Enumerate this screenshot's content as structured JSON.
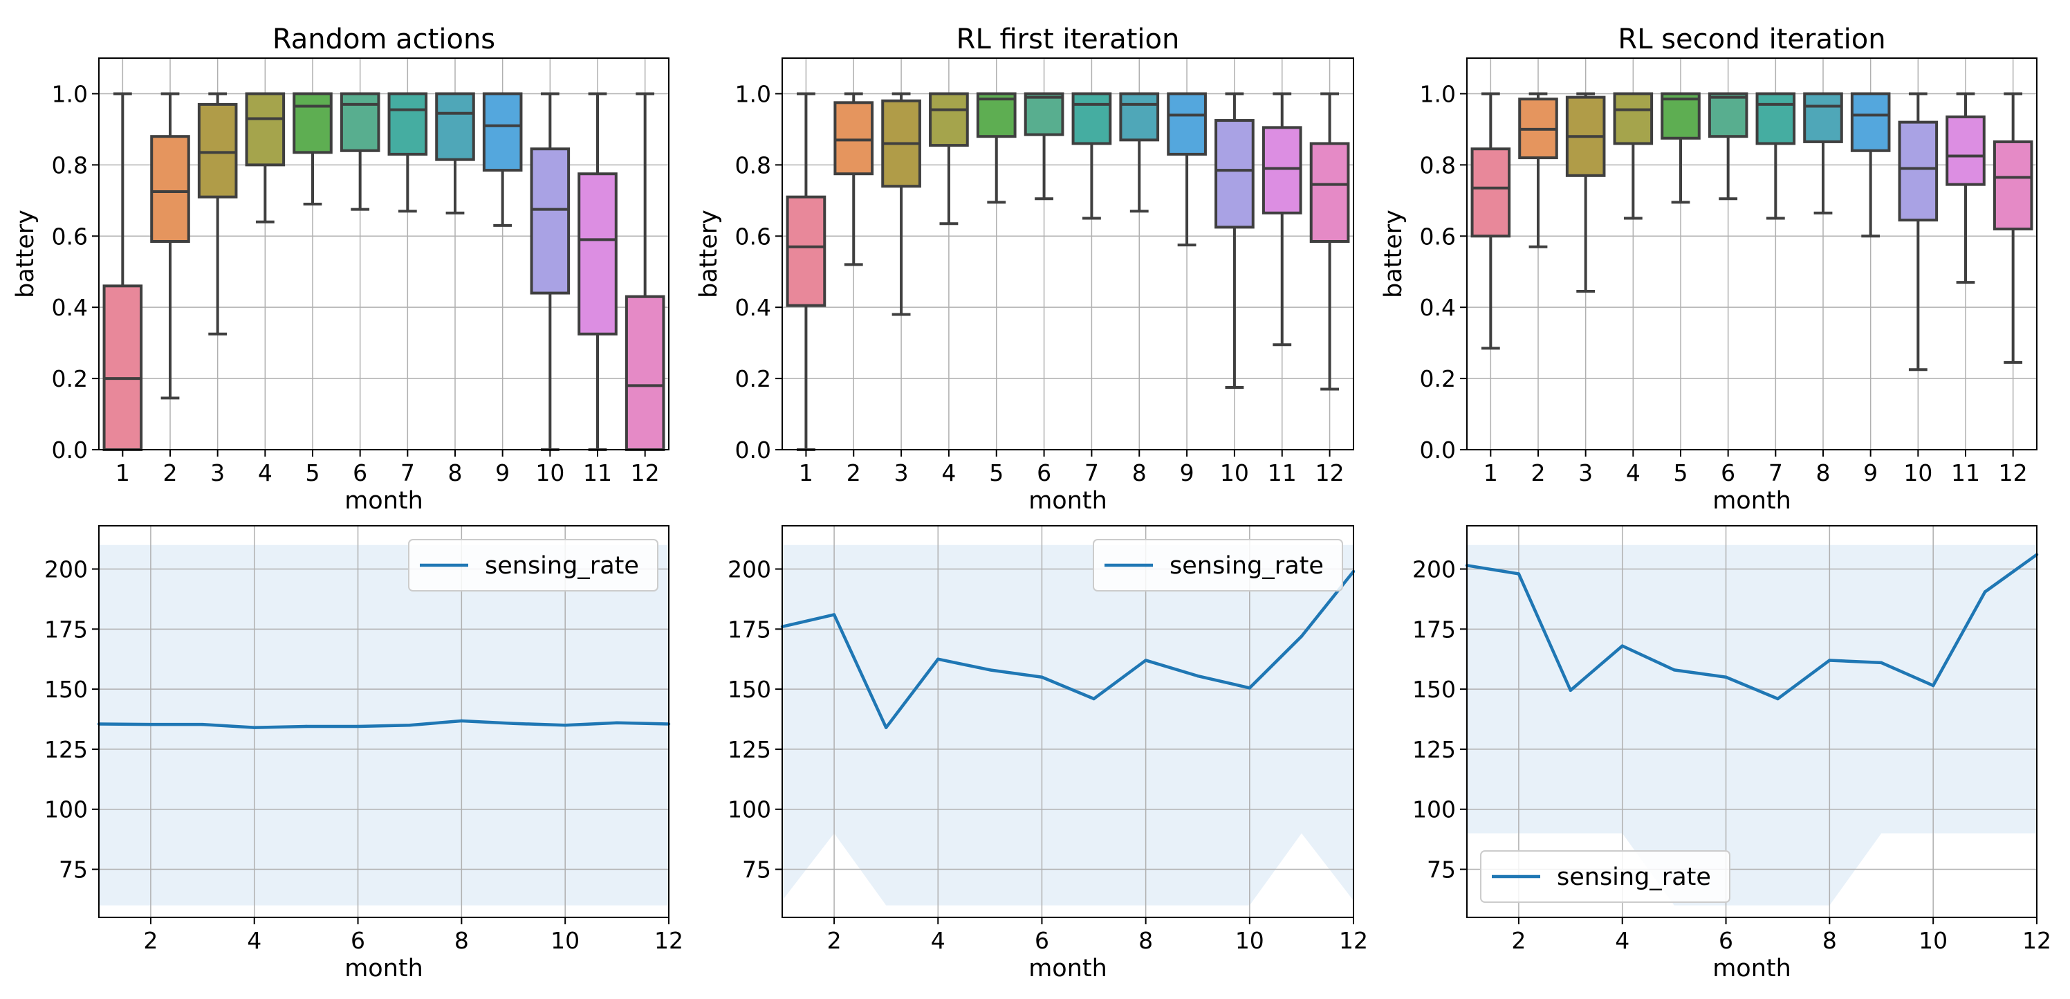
{
  "chart_data": [
    {
      "type": "box",
      "title": "Random actions",
      "xlabel": "month",
      "ylabel": "battery",
      "categories": [
        "1",
        "2",
        "3",
        "4",
        "5",
        "6",
        "7",
        "8",
        "9",
        "10",
        "11",
        "12"
      ],
      "ylim": [
        0,
        1.1
      ],
      "yticks": [
        "0.0",
        "0.2",
        "0.4",
        "0.6",
        "0.8",
        "1.0"
      ],
      "grid": true,
      "boxes": [
        {
          "min": 0.0,
          "q1": 0.0,
          "median": 0.2,
          "q3": 0.46,
          "max": 1.0
        },
        {
          "min": 0.145,
          "q1": 0.585,
          "median": 0.725,
          "q3": 0.88,
          "max": 1.0
        },
        {
          "min": 0.325,
          "q1": 0.71,
          "median": 0.835,
          "q3": 0.97,
          "max": 1.0
        },
        {
          "min": 0.64,
          "q1": 0.8,
          "median": 0.93,
          "q3": 1.0,
          "max": 1.0
        },
        {
          "min": 0.69,
          "q1": 0.835,
          "median": 0.965,
          "q3": 1.0,
          "max": 1.0
        },
        {
          "min": 0.675,
          "q1": 0.84,
          "median": 0.97,
          "q3": 1.0,
          "max": 1.0
        },
        {
          "min": 0.67,
          "q1": 0.83,
          "median": 0.955,
          "q3": 1.0,
          "max": 1.0
        },
        {
          "min": 0.665,
          "q1": 0.815,
          "median": 0.945,
          "q3": 1.0,
          "max": 1.0
        },
        {
          "min": 0.63,
          "q1": 0.785,
          "median": 0.91,
          "q3": 1.0,
          "max": 1.0
        },
        {
          "min": 0.0,
          "q1": 0.44,
          "median": 0.675,
          "q3": 0.845,
          "max": 1.0
        },
        {
          "min": 0.0,
          "q1": 0.325,
          "median": 0.59,
          "q3": 0.775,
          "max": 1.0
        },
        {
          "min": 0.0,
          "q1": 0.0,
          "median": 0.18,
          "q3": 0.43,
          "max": 1.0
        }
      ]
    },
    {
      "type": "box",
      "title": "RL first iteration",
      "xlabel": "month",
      "ylabel": "battery",
      "categories": [
        "1",
        "2",
        "3",
        "4",
        "5",
        "6",
        "7",
        "8",
        "9",
        "10",
        "11",
        "12"
      ],
      "ylim": [
        0,
        1.1
      ],
      "yticks": [
        "0.0",
        "0.2",
        "0.4",
        "0.6",
        "0.8",
        "1.0"
      ],
      "grid": true,
      "boxes": [
        {
          "min": 0.0,
          "q1": 0.405,
          "median": 0.57,
          "q3": 0.71,
          "max": 1.0
        },
        {
          "min": 0.52,
          "q1": 0.775,
          "median": 0.87,
          "q3": 0.975,
          "max": 1.0
        },
        {
          "min": 0.38,
          "q1": 0.74,
          "median": 0.86,
          "q3": 0.98,
          "max": 1.0
        },
        {
          "min": 0.635,
          "q1": 0.855,
          "median": 0.955,
          "q3": 1.0,
          "max": 1.0
        },
        {
          "min": 0.695,
          "q1": 0.88,
          "median": 0.985,
          "q3": 1.0,
          "max": 1.0
        },
        {
          "min": 0.705,
          "q1": 0.885,
          "median": 0.99,
          "q3": 1.0,
          "max": 1.0
        },
        {
          "min": 0.65,
          "q1": 0.86,
          "median": 0.97,
          "q3": 1.0,
          "max": 1.0
        },
        {
          "min": 0.67,
          "q1": 0.87,
          "median": 0.97,
          "q3": 1.0,
          "max": 1.0
        },
        {
          "min": 0.575,
          "q1": 0.83,
          "median": 0.94,
          "q3": 1.0,
          "max": 1.0
        },
        {
          "min": 0.175,
          "q1": 0.625,
          "median": 0.785,
          "q3": 0.925,
          "max": 1.0
        },
        {
          "min": 0.295,
          "q1": 0.665,
          "median": 0.79,
          "q3": 0.905,
          "max": 1.0
        },
        {
          "min": 0.17,
          "q1": 0.585,
          "median": 0.745,
          "q3": 0.86,
          "max": 1.0
        }
      ]
    },
    {
      "type": "box",
      "title": "RL second iteration",
      "xlabel": "month",
      "ylabel": "battery",
      "categories": [
        "1",
        "2",
        "3",
        "4",
        "5",
        "6",
        "7",
        "8",
        "9",
        "10",
        "11",
        "12"
      ],
      "ylim": [
        0,
        1.1
      ],
      "yticks": [
        "0.0",
        "0.2",
        "0.4",
        "0.6",
        "0.8",
        "1.0"
      ],
      "grid": true,
      "boxes": [
        {
          "min": 0.285,
          "q1": 0.6,
          "median": 0.735,
          "q3": 0.845,
          "max": 1.0
        },
        {
          "min": 0.57,
          "q1": 0.82,
          "median": 0.9,
          "q3": 0.985,
          "max": 1.0
        },
        {
          "min": 0.445,
          "q1": 0.77,
          "median": 0.88,
          "q3": 0.99,
          "max": 1.0
        },
        {
          "min": 0.65,
          "q1": 0.86,
          "median": 0.955,
          "q3": 1.0,
          "max": 1.0
        },
        {
          "min": 0.695,
          "q1": 0.875,
          "median": 0.985,
          "q3": 1.0,
          "max": 1.0
        },
        {
          "min": 0.705,
          "q1": 0.88,
          "median": 0.99,
          "q3": 1.0,
          "max": 1.0
        },
        {
          "min": 0.65,
          "q1": 0.86,
          "median": 0.97,
          "q3": 1.0,
          "max": 1.0
        },
        {
          "min": 0.665,
          "q1": 0.865,
          "median": 0.965,
          "q3": 1.0,
          "max": 1.0
        },
        {
          "min": 0.6,
          "q1": 0.84,
          "median": 0.94,
          "q3": 1.0,
          "max": 1.0
        },
        {
          "min": 0.225,
          "q1": 0.645,
          "median": 0.79,
          "q3": 0.92,
          "max": 1.0
        },
        {
          "min": 0.47,
          "q1": 0.745,
          "median": 0.825,
          "q3": 0.935,
          "max": 1.0
        },
        {
          "min": 0.245,
          "q1": 0.62,
          "median": 0.765,
          "q3": 0.865,
          "max": 1.0
        }
      ]
    },
    {
      "type": "line",
      "title": "",
      "xlabel": "month",
      "ylabel": "",
      "x": [
        1,
        2,
        3,
        4,
        5,
        6,
        7,
        8,
        9,
        10,
        11,
        12
      ],
      "xlim": [
        1,
        12
      ],
      "ylim": [
        55,
        218
      ],
      "xticks": [
        "2",
        "4",
        "6",
        "8",
        "10",
        "12"
      ],
      "yticks": [
        "75",
        "100",
        "125",
        "150",
        "175",
        "200"
      ],
      "grid": true,
      "legend": "top-right",
      "series": [
        {
          "name": "sensing_rate",
          "values": [
            135.5,
            135.3,
            135.3,
            134,
            134.5,
            134.5,
            135,
            136.8,
            135.7,
            135,
            136,
            135.5
          ]
        }
      ],
      "band": {
        "lower": [
          60,
          60,
          60,
          60,
          60,
          60,
          60,
          60,
          60,
          60,
          60,
          60
        ],
        "upper": [
          210,
          210,
          210,
          210,
          210,
          210,
          210,
          210,
          210,
          210,
          210,
          210
        ]
      }
    },
    {
      "type": "line",
      "title": "",
      "xlabel": "month",
      "ylabel": "",
      "x": [
        1,
        2,
        3,
        4,
        5,
        6,
        7,
        8,
        9,
        10,
        11,
        12
      ],
      "xlim": [
        1,
        12
      ],
      "ylim": [
        55,
        218
      ],
      "xticks": [
        "2",
        "4",
        "6",
        "8",
        "10",
        "12"
      ],
      "yticks": [
        "75",
        "100",
        "125",
        "150",
        "175",
        "200"
      ],
      "grid": true,
      "legend": "top-right",
      "series": [
        {
          "name": "sensing_rate",
          "values": [
            176,
            181,
            134,
            162.5,
            158,
            155,
            146,
            162,
            155.5,
            150.5,
            172,
            199
          ]
        }
      ],
      "band": {
        "lower": [
          62,
          90,
          60,
          60,
          60,
          60,
          60,
          60,
          60,
          60,
          90,
          62
        ],
        "upper": [
          210,
          210,
          210,
          210,
          210,
          210,
          210,
          210,
          210,
          210,
          210,
          210
        ]
      }
    },
    {
      "type": "line",
      "title": "",
      "xlabel": "month",
      "ylabel": "",
      "x": [
        1,
        2,
        3,
        4,
        5,
        6,
        7,
        8,
        9,
        10,
        11,
        12
      ],
      "xlim": [
        1,
        12
      ],
      "ylim": [
        55,
        218
      ],
      "xticks": [
        "2",
        "4",
        "6",
        "8",
        "10",
        "12"
      ],
      "yticks": [
        "75",
        "100",
        "125",
        "150",
        "175",
        "200"
      ],
      "grid": true,
      "legend": "bottom-left",
      "series": [
        {
          "name": "sensing_rate",
          "values": [
            201.5,
            198,
            149.5,
            168,
            158,
            155,
            146,
            162,
            161,
            151.5,
            190.5,
            206
          ]
        }
      ],
      "band": {
        "lower": [
          90,
          90,
          90,
          90,
          60,
          60,
          60,
          60,
          90,
          90,
          90,
          90
        ],
        "upper": [
          210,
          210,
          210,
          210,
          210,
          210,
          210,
          210,
          210,
          210,
          210,
          210
        ]
      }
    }
  ],
  "colors": {
    "box_palette": [
      "#e8889a",
      "#e5955e",
      "#b09c48",
      "#a5a44c",
      "#5eae52",
      "#58ae8f",
      "#45ada1",
      "#4fa7b8",
      "#54a7dd",
      "#a9a2e4",
      "#dc8ee2",
      "#e58ac6"
    ],
    "line": "#1f77b4",
    "band": "#e8f1f9",
    "grid": "#b0b0b0",
    "box_edge": "#3f3f3f"
  }
}
